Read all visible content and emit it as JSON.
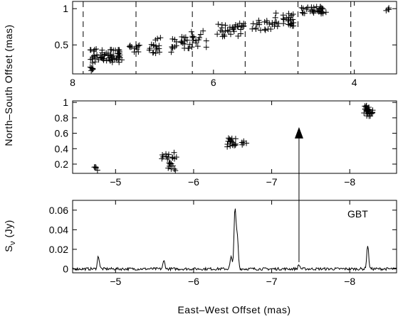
{
  "chart_data": [
    {
      "type": "scatter",
      "panel": "top",
      "xlim": [
        8,
        3.4
      ],
      "ylim": [
        0.1,
        1.1
      ],
      "xticks": [
        8,
        6,
        4
      ],
      "xtick_labels": [
        "8",
        "6",
        "4"
      ],
      "yticks": [
        0.5,
        1
      ],
      "ytick_labels": [
        "0.5",
        "1"
      ],
      "grid": false,
      "dashed_separators_x": [
        7.85,
        7.1,
        6.3,
        5.55,
        4.8,
        4.05,
        3.3
      ],
      "clusters": [
        {
          "x_range": [
            7.75,
            7.7
          ],
          "y_range": [
            0.13,
            0.2
          ],
          "count": 6
        },
        {
          "x_range": [
            7.75,
            7.3
          ],
          "y_range": [
            0.25,
            0.45
          ],
          "count": 60
        },
        {
          "x_range": [
            7.2,
            7.05
          ],
          "y_range": [
            0.4,
            0.5
          ],
          "count": 10
        },
        {
          "x_range": [
            6.95,
            6.75
          ],
          "y_range": [
            0.35,
            0.6
          ],
          "count": 16
        },
        {
          "x_range": [
            6.6,
            6.35
          ],
          "y_range": [
            0.45,
            0.62
          ],
          "count": 18
        },
        {
          "x_range": [
            6.35,
            6.1
          ],
          "y_range": [
            0.45,
            0.7
          ],
          "count": 16
        },
        {
          "x_range": [
            6.05,
            5.55
          ],
          "y_range": [
            0.6,
            0.8
          ],
          "count": 30
        },
        {
          "x_range": [
            5.45,
            5.15
          ],
          "y_range": [
            0.7,
            0.85
          ],
          "count": 18
        },
        {
          "x_range": [
            5.15,
            4.85
          ],
          "y_range": [
            0.75,
            0.95
          ],
          "count": 26
        },
        {
          "x_range": [
            4.75,
            4.4
          ],
          "y_range": [
            0.93,
            1.03
          ],
          "count": 34
        },
        {
          "x_range": [
            3.55,
            3.5
          ],
          "y_range": [
            0.96,
            1.02
          ],
          "count": 3
        }
      ],
      "points": [
        [
          7.72,
          0.16
        ],
        [
          7.65,
          0.33
        ],
        [
          7.55,
          0.36
        ],
        [
          7.45,
          0.32
        ],
        [
          7.35,
          0.38
        ],
        [
          7.12,
          0.45
        ],
        [
          6.85,
          0.5
        ],
        [
          6.6,
          0.4
        ],
        [
          6.45,
          0.55
        ],
        [
          6.2,
          0.6
        ],
        [
          5.9,
          0.7
        ],
        [
          5.65,
          0.75
        ],
        [
          5.35,
          0.78
        ],
        [
          5.0,
          0.85
        ],
        [
          4.6,
          0.98
        ],
        [
          3.52,
          0.99
        ]
      ]
    },
    {
      "type": "scatter",
      "panel": "middle",
      "xlim": [
        -4.45,
        -8.6
      ],
      "ylim": [
        0.08,
        1.02
      ],
      "xticks": [
        -5,
        -6,
        -7,
        -8
      ],
      "xtick_labels": [
        "−5",
        "−6",
        "−7",
        "−8"
      ],
      "yticks": [
        0.2,
        0.4,
        0.6,
        0.8,
        1
      ],
      "ytick_labels": [
        "0.2",
        "0.4",
        "0.6",
        "0.8",
        "1"
      ],
      "grid": false,
      "clusters": [
        {
          "x_range": [
            -4.78,
            -4.72
          ],
          "y_range": [
            0.12,
            0.17
          ],
          "count": 4
        },
        {
          "x_range": [
            -5.8,
            -5.58
          ],
          "y_range": [
            0.1,
            0.4
          ],
          "count": 20
        },
        {
          "x_range": [
            -6.55,
            -6.43
          ],
          "y_range": [
            0.42,
            0.55
          ],
          "count": 16
        },
        {
          "x_range": [
            -6.7,
            -6.6
          ],
          "y_range": [
            0.44,
            0.5
          ],
          "count": 4
        },
        {
          "x_range": [
            -8.3,
            -8.18
          ],
          "y_range": [
            0.82,
            0.96
          ],
          "count": 26
        }
      ],
      "points": [
        [
          -4.75,
          0.15
        ],
        [
          -5.65,
          0.3
        ],
        [
          -5.7,
          0.2
        ],
        [
          -5.75,
          0.35
        ],
        [
          -5.6,
          0.32
        ],
        [
          -6.48,
          0.5
        ],
        [
          -6.52,
          0.44
        ],
        [
          -6.64,
          0.47
        ],
        [
          -8.22,
          0.9
        ],
        [
          -8.26,
          0.86
        ]
      ],
      "annotation": {
        "type": "arrow",
        "x": -7.35,
        "from_y": -0.06,
        "to_y": 0.68
      }
    },
    {
      "type": "line",
      "panel": "bottom",
      "xlim": [
        -4.45,
        -8.6
      ],
      "ylim": [
        -0.004,
        0.07
      ],
      "xticks": [
        -5,
        -6,
        -7,
        -8
      ],
      "xtick_labels": [
        "−5",
        "−6",
        "−7",
        "−8"
      ],
      "yticks": [
        0,
        0.02,
        0.04,
        0.06
      ],
      "ytick_labels": [
        "0",
        "0.02",
        "0.04",
        "0.06"
      ],
      "grid": false,
      "annotation_text": "GBT",
      "baseline": 0,
      "peaks": [
        {
          "x": -4.78,
          "y": 0.013
        },
        {
          "x": -5.62,
          "y": 0.008
        },
        {
          "x": -6.48,
          "y": 0.012
        },
        {
          "x": -6.53,
          "y": 0.06
        },
        {
          "x": -6.56,
          "y": 0.032
        },
        {
          "x": -7.35,
          "y": 0.004
        },
        {
          "x": -8.23,
          "y": 0.024
        }
      ]
    }
  ],
  "labels": {
    "ylabel_shared": "North–South Offset (mas)",
    "ylabel_bottom": "S",
    "ylabel_bottom_sub": "ν",
    "ylabel_bottom_unit": " (Jy)",
    "xlabel": "East–West Offset (mas)"
  }
}
